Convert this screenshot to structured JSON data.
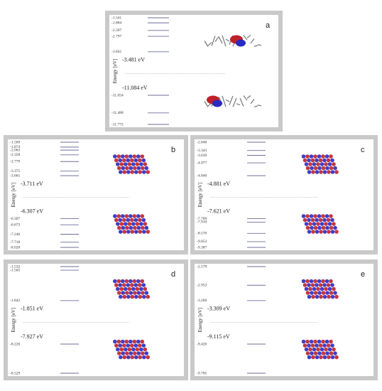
{
  "panels": [
    {
      "label": "a",
      "axis_label": "Energy [eV]",
      "levels": [
        "-1.541",
        "-1.884",
        "-2.397",
        "-2.797",
        "-3.841",
        "-11.054",
        "-11.488",
        "-11.772"
      ],
      "lumo": "-3.481 eV",
      "homo": "-11.084 eV"
    },
    {
      "label": "b",
      "axis_label": "Energy [eV]",
      "levels": [
        "-1.569",
        "-1.874",
        "-2.063",
        "-2.358",
        "-2.779",
        "-3.375",
        "-3.661",
        "-6.307",
        "-6.673",
        "-7.240",
        "-7.718",
        "-8.028"
      ],
      "lumo": "-3.711 eV",
      "homo": "-6.307 eV"
    },
    {
      "label": "c",
      "axis_label": "Energy [eV]",
      "levels": [
        "-2.848",
        "-3.343",
        "-3.630",
        "-4.077",
        "-4.840",
        "-7.709",
        "-7.910",
        "-8.570",
        "-9.053",
        "-9.387"
      ],
      "lumo": "-4.881 eV",
      "homo": "-7.621 eV"
    },
    {
      "label": "d",
      "axis_label": "Energy [eV]",
      "levels": [
        "-1.565",
        "-1.532",
        "-1.842",
        "-8.220",
        "-8.529"
      ],
      "lumo": "-1.851 eV",
      "homo": "-7.927 eV"
    },
    {
      "label": "e",
      "axis_label": "Energy [eV]",
      "levels": [
        "-2.579",
        "-2.953",
        "-3.260",
        "-9.420",
        "-9.705"
      ],
      "lumo": "-3.309 eV",
      "homo": "-9.115 eV"
    }
  ]
}
